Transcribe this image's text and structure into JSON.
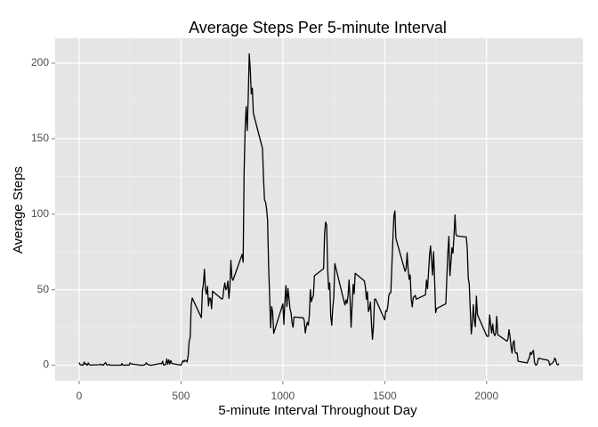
{
  "chart_data": {
    "type": "line",
    "title": "Average Steps Per 5-minute Interval",
    "x_label": "5-minute Interval Throughout Day",
    "y_label": "Average Steps",
    "color": "#000000",
    "grid": true,
    "xlim": [
      -117.75,
      2472.75
    ],
    "ylim": [
      -10.3,
      216.5
    ],
    "xticks": [
      0,
      500,
      1000,
      1500,
      2000
    ],
    "yticks": [
      0,
      50,
      100,
      150,
      200
    ],
    "x": [
      0,
      5,
      10,
      15,
      20,
      25,
      30,
      35,
      40,
      45,
      50,
      55,
      100,
      105,
      110,
      115,
      120,
      125,
      130,
      135,
      140,
      145,
      150,
      155,
      200,
      205,
      210,
      215,
      220,
      225,
      230,
      235,
      240,
      245,
      250,
      255,
      300,
      305,
      310,
      315,
      320,
      325,
      330,
      335,
      340,
      345,
      350,
      355,
      400,
      405,
      410,
      415,
      420,
      425,
      430,
      435,
      440,
      445,
      450,
      455,
      500,
      505,
      510,
      515,
      520,
      525,
      530,
      535,
      540,
      545,
      550,
      555,
      600,
      605,
      610,
      615,
      620,
      625,
      630,
      635,
      640,
      645,
      650,
      655,
      700,
      705,
      710,
      715,
      720,
      725,
      730,
      735,
      740,
      745,
      750,
      755,
      800,
      805,
      810,
      815,
      820,
      825,
      830,
      835,
      840,
      845,
      850,
      855,
      900,
      905,
      910,
      915,
      920,
      925,
      930,
      935,
      940,
      945,
      950,
      955,
      1000,
      1005,
      1010,
      1015,
      1020,
      1025,
      1030,
      1035,
      1040,
      1045,
      1050,
      1055,
      1100,
      1105,
      1110,
      1115,
      1120,
      1125,
      1130,
      1135,
      1140,
      1145,
      1150,
      1155,
      1200,
      1205,
      1210,
      1215,
      1220,
      1225,
      1230,
      1235,
      1240,
      1245,
      1250,
      1255,
      1300,
      1305,
      1310,
      1315,
      1320,
      1325,
      1330,
      1335,
      1340,
      1345,
      1350,
      1355,
      1400,
      1405,
      1410,
      1415,
      1420,
      1425,
      1430,
      1435,
      1440,
      1445,
      1450,
      1455,
      1500,
      1505,
      1510,
      1515,
      1520,
      1525,
      1530,
      1535,
      1540,
      1545,
      1550,
      1555,
      1600,
      1605,
      1610,
      1615,
      1620,
      1625,
      1630,
      1635,
      1640,
      1645,
      1650,
      1655,
      1700,
      1705,
      1710,
      1715,
      1720,
      1725,
      1730,
      1735,
      1740,
      1745,
      1750,
      1755,
      1800,
      1805,
      1810,
      1815,
      1820,
      1825,
      1830,
      1835,
      1840,
      1845,
      1850,
      1855,
      1900,
      1905,
      1910,
      1915,
      1920,
      1925,
      1930,
      1935,
      1940,
      1945,
      1950,
      1955,
      2000,
      2005,
      2010,
      2015,
      2020,
      2025,
      2030,
      2035,
      2040,
      2045,
      2050,
      2055,
      2100,
      2105,
      2110,
      2115,
      2120,
      2125,
      2130,
      2135,
      2140,
      2145,
      2150,
      2155,
      2200,
      2205,
      2210,
      2215,
      2220,
      2225,
      2230,
      2235,
      2240,
      2245,
      2250,
      2255,
      2300,
      2305,
      2310,
      2315,
      2320,
      2325,
      2330,
      2335,
      2340,
      2345,
      2350,
      2355
    ],
    "values": [
      1.7,
      0.3,
      0.1,
      0.2,
      0.1,
      2.1,
      0.5,
      0.9,
      0,
      1.5,
      0.3,
      0.1,
      0.3,
      0.7,
      0.2,
      0.3,
      0,
      1.1,
      1.8,
      0.2,
      0.2,
      0.4,
      0.3,
      0,
      0,
      0,
      1.1,
      0,
      0,
      0.1,
      0,
      0.2,
      0,
      0,
      1.5,
      0.9,
      0,
      0,
      0,
      0,
      0.2,
      0.6,
      1.6,
      0.6,
      0.5,
      0.1,
      0,
      0,
      1.2,
      0.9,
      2.6,
      0,
      0.3,
      0.4,
      4.1,
      0.7,
      3.5,
      0.8,
      3.1,
      1.1,
      0,
      1.6,
      3,
      2.2,
      3.3,
      3,
      2.1,
      6.1,
      16,
      18.3,
      39.5,
      44.5,
      31.5,
      49.3,
      53.8,
      63.5,
      50,
      47.1,
      52.2,
      39.3,
      44.5,
      44.2,
      37.4,
      49,
      43.8,
      44.4,
      50.5,
      54.5,
      49.9,
      50.9,
      55.7,
      44.3,
      52.3,
      69.5,
      57.8,
      56.2,
      73.4,
      68.2,
      129.4,
      157.5,
      171.2,
      155.4,
      177.3,
      206.2,
      195.9,
      179.6,
      183.4,
      167,
      143.5,
      124,
      109.1,
      108.1,
      103.7,
      95.96,
      66.2,
      45.2,
      24.8,
      38.8,
      34.98,
      21.1,
      40.6,
      27,
      42.4,
      52.7,
      38.9,
      50.8,
      44.3,
      37.4,
      34.7,
      28.3,
      25.1,
      31.9,
      31.4,
      29.7,
      21.3,
      25.5,
      28.4,
      26.5,
      33.4,
      50,
      42,
      44.6,
      46,
      59.2,
      63.9,
      87.7,
      94.8,
      92.8,
      63.4,
      50.2,
      54.5,
      32.4,
      26.5,
      37.7,
      45.1,
      67.3,
      42.3,
      39.9,
      43.3,
      40.98,
      46.2,
      56.4,
      42.8,
      25.1,
      39.97,
      53.5,
      47.3,
      60.8,
      55.8,
      51.96,
      43.6,
      48.7,
      35.5,
      37.5,
      41.8,
      27.5,
      17.1,
      26.1,
      43.6,
      43.8,
      30,
      36.1,
      35.5,
      38.8,
      45.96,
      47.8,
      48.1,
      65.3,
      82.9,
      98.7,
      102.1,
      83.96,
      62.1,
      64.1,
      74.5,
      63.2,
      56.9,
      59.8,
      43.9,
      38.6,
      44.7,
      45.5,
      46.2,
      43.7,
      46.6,
      56.3,
      50.7,
      61.2,
      72.7,
      78.9,
      68.9,
      59.7,
      75.1,
      56.5,
      34.8,
      37.5,
      40.7,
      58,
      74.7,
      85.3,
      59.3,
      67.8,
      77.7,
      74.2,
      85.3,
      99.5,
      86.6,
      85.6,
      84.9,
      77.8,
      58,
      53.4,
      36.3,
      20.7,
      27.4,
      40,
      30.2,
      25.5,
      45.7,
      33.5,
      19.6,
      19,
      19.3,
      33.3,
      26.8,
      21.2,
      27.3,
      21.3,
      19.5,
      21.3,
      32.3,
      20.2,
      15.9,
      17.2,
      23.5,
      19.2,
      12.5,
      8,
      14.7,
      16.3,
      8.7,
      7.8,
      8.1,
      2.6,
      1.5,
      3.7,
      4.8,
      8.5,
      7.1,
      8.7,
      9.8,
      2.2,
      0.3,
      0.1,
      1.6,
      4.6,
      3.3,
      2.8,
      0,
      0.8,
      1,
      1.6,
      2.6,
      4.7,
      3.3,
      0.6,
      0.2,
      1.1
    ]
  }
}
